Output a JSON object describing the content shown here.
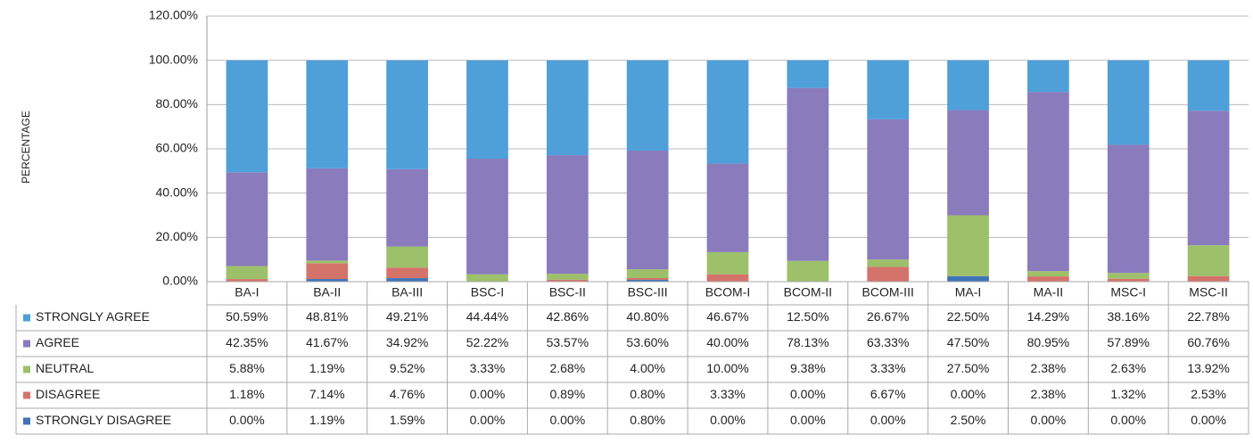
{
  "chart_data": {
    "type": "stacked_bar",
    "y_label": "PERCENTAGE",
    "categories": [
      "BA-I",
      "BA-II",
      "BA-III",
      "BSC-I",
      "BSC-II",
      "BSC-III",
      "BCOM-I",
      "BCOM-II",
      "BCOM-III",
      "MA-I",
      "MA-II",
      "MSC-I",
      "MSC-II"
    ],
    "series": [
      {
        "name": "STRONGLY AGREE",
        "color": "#4f9fd9",
        "values": [
          50.59,
          48.81,
          49.21,
          44.44,
          42.86,
          40.8,
          46.67,
          12.5,
          26.67,
          22.5,
          14.29,
          38.16,
          22.78
        ],
        "value_labels": [
          "50.59%",
          "48.81%",
          "49.21%",
          "44.44%",
          "42.86%",
          "40.80%",
          "46.67%",
          "12.50%",
          "26.67%",
          "22.50%",
          "14.29%",
          "38.16%",
          "22.78%"
        ]
      },
      {
        "name": "AGREE",
        "color": "#8a7bbd",
        "values": [
          42.35,
          41.67,
          34.92,
          52.22,
          53.57,
          53.6,
          40.0,
          78.13,
          63.33,
          47.5,
          80.95,
          57.89,
          60.76
        ],
        "value_labels": [
          "42.35%",
          "41.67%",
          "34.92%",
          "52.22%",
          "53.57%",
          "53.60%",
          "40.00%",
          "78.13%",
          "63.33%",
          "47.50%",
          "80.95%",
          "57.89%",
          "60.76%"
        ]
      },
      {
        "name": "NEUTRAL",
        "color": "#9dc06a",
        "values": [
          5.88,
          1.19,
          9.52,
          3.33,
          2.68,
          4.0,
          10.0,
          9.38,
          3.33,
          27.5,
          2.38,
          2.63,
          13.92
        ],
        "value_labels": [
          "5.88%",
          "1.19%",
          "9.52%",
          "3.33%",
          "2.68%",
          "4.00%",
          "10.00%",
          "9.38%",
          "3.33%",
          "27.50%",
          "2.38%",
          "2.63%",
          "13.92%"
        ]
      },
      {
        "name": "DISAGREE",
        "color": "#d4736a",
        "values": [
          1.18,
          7.14,
          4.76,
          0.0,
          0.89,
          0.8,
          3.33,
          0.0,
          6.67,
          0.0,
          2.38,
          1.32,
          2.53
        ],
        "value_labels": [
          "1.18%",
          "7.14%",
          "4.76%",
          "0.00%",
          "0.89%",
          "0.80%",
          "3.33%",
          "0.00%",
          "6.67%",
          "0.00%",
          "2.38%",
          "1.32%",
          "2.53%"
        ]
      },
      {
        "name": "STRONGLY DISAGREE",
        "color": "#3f74b8",
        "values": [
          0.0,
          1.19,
          1.59,
          0.0,
          0.0,
          0.8,
          0.0,
          0.0,
          0.0,
          2.5,
          0.0,
          0.0,
          0.0
        ],
        "value_labels": [
          "0.00%",
          "1.19%",
          "1.59%",
          "0.00%",
          "0.00%",
          "0.80%",
          "0.00%",
          "0.00%",
          "0.00%",
          "2.50%",
          "0.00%",
          "0.00%",
          "0.00%"
        ]
      }
    ],
    "ylim": [
      0,
      120
    ],
    "yticks": [
      {
        "value": 0,
        "label": "0.00%"
      },
      {
        "value": 20,
        "label": "20.00%"
      },
      {
        "value": 40,
        "label": "40.00%"
      },
      {
        "value": 60,
        "label": "60.00%"
      },
      {
        "value": 80,
        "label": "80.00%"
      },
      {
        "value": 100,
        "label": "100.00%"
      },
      {
        "value": 120,
        "label": "120.00%"
      }
    ],
    "grid": true
  }
}
